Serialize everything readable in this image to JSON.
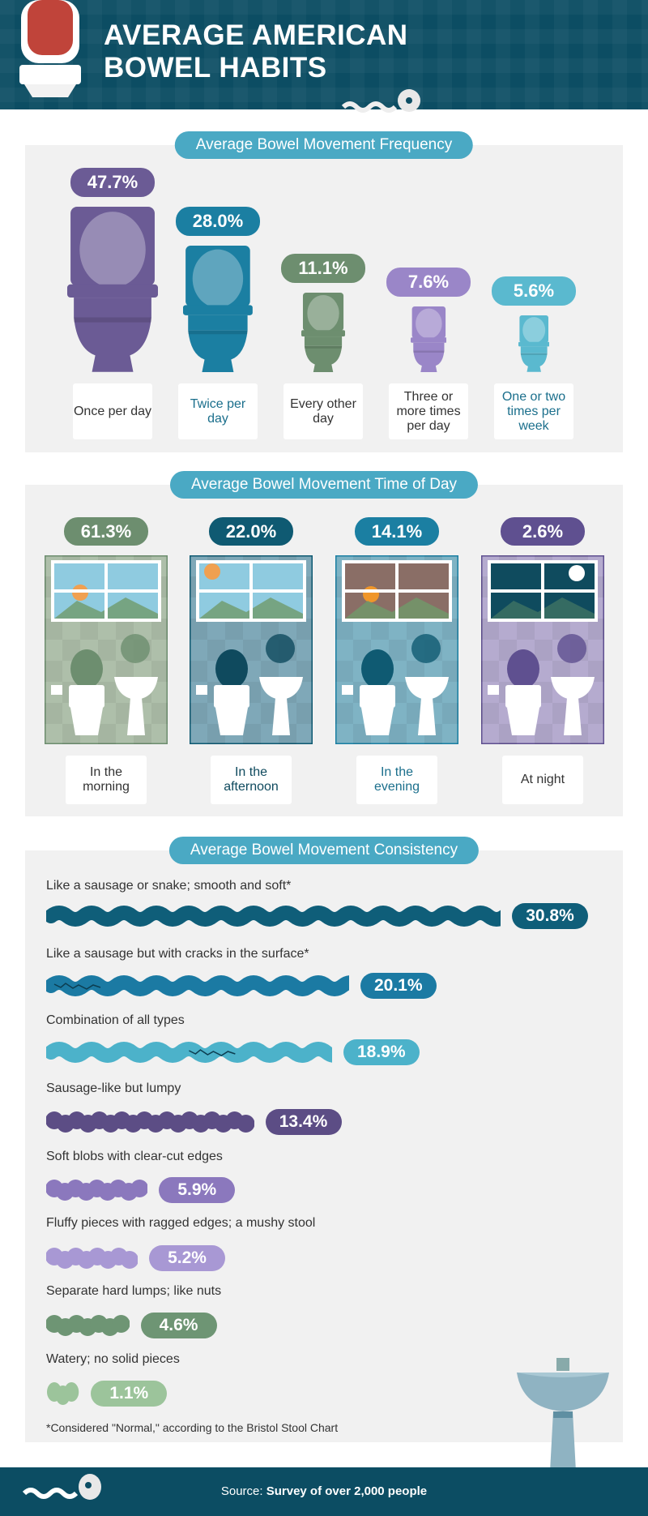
{
  "title": {
    "line1": "AVERAGE AMERICAN",
    "line2": "BOWEL HABITS"
  },
  "chart_data": [
    {
      "type": "bar",
      "title": "Average Bowel Movement Frequency",
      "categories": [
        "Once per day",
        "Twice per day",
        "Every other day",
        "Three or more times per day",
        "One or two times per week"
      ],
      "values": [
        47.7,
        28.0,
        11.1,
        7.6,
        5.6
      ],
      "labels": [
        "47.7%",
        "28.0%",
        "11.1%",
        "7.6%",
        "5.6%"
      ],
      "colors": [
        "#6b5b95",
        "#1b7fa2",
        "#6d8e6f",
        "#9a86c8",
        "#5ab9cf"
      ]
    },
    {
      "type": "bar",
      "title": "Average Bowel Movement Time of Day",
      "categories": [
        "In the morning",
        "In the afternoon",
        "In the evening",
        "At night"
      ],
      "values": [
        61.3,
        22.0,
        14.1,
        2.6
      ],
      "labels": [
        "61.3%",
        "22.0%",
        "14.1%",
        "2.6%"
      ],
      "colors": [
        "#6d8e6f",
        "#0f5a72",
        "#1b7fa2",
        "#5f5090"
      ]
    },
    {
      "type": "bar",
      "title": "Average Bowel Movement Consistency",
      "categories": [
        "Like a sausage or snake; smooth and soft*",
        "Like a sausage but with cracks in the surface*",
        "Combination of all types",
        "Sausage-like but lumpy",
        "Soft blobs with clear-cut edges",
        "Fluffy pieces with ragged edges; a mushy stool",
        "Separate hard lumps; like nuts",
        "Watery; no solid pieces"
      ],
      "values": [
        30.8,
        20.1,
        18.9,
        13.4,
        5.9,
        5.2,
        4.6,
        1.1
      ],
      "labels": [
        "30.8%",
        "20.1%",
        "18.9%",
        "13.4%",
        "5.9%",
        "5.2%",
        "4.6%",
        "1.1%"
      ],
      "colors": [
        "#0f5e79",
        "#1b7aa3",
        "#4cb2ca",
        "#5c4d85",
        "#8b78bd",
        "#a898d4",
        "#6e9574",
        "#9cc49b"
      ],
      "footnote": "*Considered \"Normal,\" according to the Bristol Stool Chart"
    }
  ],
  "footer": {
    "prefix": "Source: ",
    "source": "Survey of over 2,000 people"
  }
}
